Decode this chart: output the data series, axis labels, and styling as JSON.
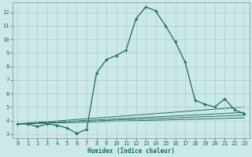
{
  "xlabel": "Humidex (Indice chaleur)",
  "background_color": "#cce9e9",
  "grid_color": "#b0c8c8",
  "line_color": "#1a6b5a",
  "xlim": [
    -0.5,
    23.5
  ],
  "ylim": [
    2.7,
    12.7
  ],
  "x_ticks": [
    0,
    1,
    2,
    3,
    4,
    5,
    6,
    7,
    8,
    9,
    10,
    11,
    12,
    13,
    14,
    15,
    16,
    17,
    18,
    19,
    20,
    21,
    22,
    23
  ],
  "y_ticks": [
    3,
    4,
    5,
    6,
    7,
    8,
    9,
    10,
    11,
    12
  ],
  "main_series_x": [
    0,
    1,
    2,
    3,
    4,
    5,
    6,
    7,
    8,
    9,
    10,
    11,
    12,
    13,
    14,
    15,
    16,
    17,
    18,
    19,
    20,
    21,
    22,
    23
  ],
  "main_series_y": [
    3.75,
    3.75,
    3.55,
    3.75,
    3.65,
    3.45,
    3.05,
    3.35,
    7.5,
    8.5,
    8.8,
    9.2,
    11.5,
    12.4,
    12.1,
    11.0,
    9.8,
    8.3,
    5.5,
    5.2,
    5.0,
    5.6,
    4.8,
    4.5
  ],
  "ref_lines": [
    {
      "x": [
        0,
        23
      ],
      "y": [
        3.75,
        4.2
      ]
    },
    {
      "x": [
        0,
        23
      ],
      "y": [
        3.75,
        4.4
      ]
    },
    {
      "x": [
        0,
        23
      ],
      "y": [
        3.75,
        4.6
      ]
    },
    {
      "x": [
        0,
        23
      ],
      "y": [
        3.75,
        5.0
      ]
    }
  ]
}
